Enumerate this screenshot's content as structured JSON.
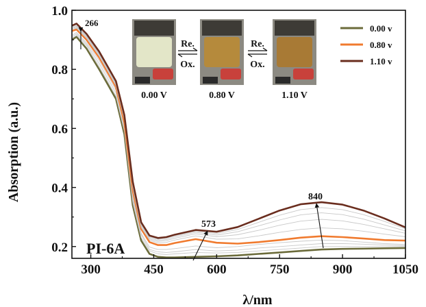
{
  "chart_data": {
    "type": "line",
    "ylabel": "Absorption (a.u.)",
    "xlabel": "λ/nm",
    "xlim": [
      255,
      1050
    ],
    "ylim": [
      0.16,
      1.0
    ],
    "x_ticks": [
      300,
      450,
      600,
      750,
      900,
      1050
    ],
    "y_ticks": [
      0.2,
      0.4,
      0.6,
      0.8,
      1.0
    ],
    "x_tick_labels": [
      "300",
      "450",
      "600",
      "750",
      "900",
      "1050"
    ],
    "y_tick_labels": [
      "0.2",
      "0.4",
      "0.6",
      "0.8",
      "1.0"
    ],
    "sample_label": "PI-6A",
    "legend_position": "top-right",
    "legend": [
      {
        "label": "0.00 v",
        "color": "#6b6b3a"
      },
      {
        "label": "0.80 v",
        "color": "#f07a2e"
      },
      {
        "label": "1.10 v",
        "color": "#6a2d1e"
      }
    ],
    "annotations": [
      {
        "text": "266",
        "x": 266,
        "y": 0.955
      },
      {
        "text": "573",
        "x": 573,
        "y": 0.255
      },
      {
        "text": "840",
        "x": 840,
        "y": 0.36
      }
    ],
    "inset": {
      "photos": [
        {
          "label": "0.00 V",
          "film_color": "#e3e6c8"
        },
        {
          "label": "0.80 V",
          "film_color": "#b58a3c"
        },
        {
          "label": "1.10 V",
          "film_color": "#a87a35"
        }
      ],
      "arrows": [
        {
          "top": "Re.",
          "bottom": "Ox."
        },
        {
          "top": "Re.",
          "bottom": "Ox."
        }
      ]
    },
    "series": [
      {
        "name": "0.00 v",
        "color": "#6b6b3a",
        "width": 2.6,
        "x": [
          255,
          266,
          290,
          320,
          340,
          360,
          380,
          400,
          420,
          440,
          460,
          480,
          500,
          550,
          600,
          650,
          700,
          750,
          800,
          850,
          900,
          950,
          1000,
          1050
        ],
        "y": [
          0.9,
          0.91,
          0.87,
          0.8,
          0.75,
          0.7,
          0.58,
          0.34,
          0.22,
          0.175,
          0.165,
          0.163,
          0.163,
          0.165,
          0.167,
          0.17,
          0.175,
          0.18,
          0.185,
          0.19,
          0.192,
          0.193,
          0.194,
          0.195
        ]
      },
      {
        "name": "",
        "color": "#c8c8c8",
        "width": 0.9,
        "x": [
          255,
          266,
          290,
          320,
          340,
          360,
          380,
          400,
          420,
          440,
          460,
          480,
          500,
          550,
          600,
          650,
          700,
          750,
          800,
          850,
          900,
          950,
          1000,
          1050
        ],
        "y": [
          0.905,
          0.915,
          0.88,
          0.81,
          0.76,
          0.71,
          0.59,
          0.35,
          0.23,
          0.185,
          0.175,
          0.173,
          0.175,
          0.18,
          0.178,
          0.18,
          0.185,
          0.19,
          0.195,
          0.2,
          0.2,
          0.2,
          0.2,
          0.2
        ]
      },
      {
        "name": "",
        "color": "#c8c8c8",
        "width": 0.9,
        "x": [
          255,
          266,
          290,
          320,
          340,
          360,
          380,
          400,
          420,
          440,
          460,
          480,
          500,
          550,
          600,
          650,
          700,
          750,
          800,
          850,
          900,
          950,
          1000,
          1050
        ],
        "y": [
          0.91,
          0.92,
          0.885,
          0.82,
          0.77,
          0.72,
          0.6,
          0.36,
          0.24,
          0.19,
          0.182,
          0.18,
          0.182,
          0.19,
          0.185,
          0.188,
          0.195,
          0.2,
          0.205,
          0.21,
          0.21,
          0.208,
          0.205,
          0.203
        ]
      },
      {
        "name": "",
        "color": "#c8c8c8",
        "width": 0.9,
        "x": [
          255,
          266,
          290,
          320,
          340,
          360,
          380,
          400,
          420,
          440,
          460,
          480,
          500,
          550,
          600,
          650,
          700,
          750,
          800,
          850,
          900,
          950,
          1000,
          1050
        ],
        "y": [
          0.915,
          0.925,
          0.89,
          0.83,
          0.78,
          0.73,
          0.61,
          0.37,
          0.245,
          0.198,
          0.19,
          0.19,
          0.193,
          0.202,
          0.196,
          0.2,
          0.207,
          0.213,
          0.218,
          0.222,
          0.22,
          0.215,
          0.21,
          0.207
        ]
      },
      {
        "name": "0.80 v",
        "color": "#f07a2e",
        "width": 2.6,
        "x": [
          255,
          266,
          290,
          320,
          340,
          360,
          380,
          400,
          420,
          440,
          460,
          480,
          500,
          550,
          600,
          650,
          700,
          750,
          800,
          850,
          900,
          950,
          1000,
          1050
        ],
        "y": [
          0.93,
          0.935,
          0.9,
          0.84,
          0.79,
          0.74,
          0.62,
          0.39,
          0.26,
          0.215,
          0.205,
          0.205,
          0.212,
          0.225,
          0.213,
          0.21,
          0.215,
          0.222,
          0.23,
          0.235,
          0.232,
          0.227,
          0.222,
          0.22
        ]
      },
      {
        "name": "",
        "color": "#c8c8c8",
        "width": 0.9,
        "x": [
          255,
          266,
          290,
          320,
          340,
          360,
          380,
          400,
          420,
          440,
          460,
          480,
          500,
          550,
          600,
          650,
          700,
          750,
          800,
          850,
          900,
          950,
          1000,
          1050
        ],
        "y": [
          0.935,
          0.94,
          0.905,
          0.845,
          0.795,
          0.745,
          0.63,
          0.4,
          0.265,
          0.222,
          0.212,
          0.214,
          0.222,
          0.236,
          0.225,
          0.226,
          0.236,
          0.248,
          0.258,
          0.263,
          0.26,
          0.252,
          0.242,
          0.233
        ]
      },
      {
        "name": "",
        "color": "#c8c8c8",
        "width": 0.9,
        "x": [
          255,
          266,
          290,
          320,
          340,
          360,
          380,
          400,
          420,
          440,
          460,
          480,
          500,
          550,
          600,
          650,
          700,
          750,
          800,
          850,
          900,
          950,
          1000,
          1050
        ],
        "y": [
          0.938,
          0.943,
          0.908,
          0.848,
          0.798,
          0.748,
          0.635,
          0.405,
          0.27,
          0.226,
          0.217,
          0.22,
          0.228,
          0.243,
          0.233,
          0.24,
          0.255,
          0.272,
          0.286,
          0.292,
          0.287,
          0.275,
          0.26,
          0.245
        ]
      },
      {
        "name": "",
        "color": "#c8c8c8",
        "width": 0.9,
        "x": [
          255,
          266,
          290,
          320,
          340,
          360,
          380,
          400,
          420,
          440,
          460,
          480,
          500,
          550,
          600,
          650,
          700,
          750,
          800,
          850,
          900,
          950,
          1000,
          1050
        ],
        "y": [
          0.941,
          0.946,
          0.911,
          0.851,
          0.801,
          0.751,
          0.638,
          0.41,
          0.274,
          0.23,
          0.221,
          0.224,
          0.233,
          0.248,
          0.239,
          0.25,
          0.27,
          0.29,
          0.307,
          0.314,
          0.308,
          0.293,
          0.273,
          0.253
        ]
      },
      {
        "name": "",
        "color": "#c8c8c8",
        "width": 0.9,
        "x": [
          255,
          266,
          290,
          320,
          340,
          360,
          380,
          400,
          420,
          440,
          460,
          480,
          500,
          550,
          600,
          650,
          700,
          750,
          800,
          850,
          900,
          950,
          1000,
          1050
        ],
        "y": [
          0.944,
          0.949,
          0.914,
          0.854,
          0.804,
          0.754,
          0.641,
          0.414,
          0.278,
          0.233,
          0.225,
          0.228,
          0.237,
          0.252,
          0.244,
          0.258,
          0.282,
          0.306,
          0.325,
          0.332,
          0.325,
          0.308,
          0.285,
          0.26
        ]
      },
      {
        "name": "1.10 v",
        "color": "#6a2d1e",
        "width": 2.6,
        "x": [
          255,
          266,
          290,
          320,
          340,
          360,
          380,
          400,
          420,
          440,
          460,
          480,
          500,
          550,
          600,
          650,
          700,
          750,
          800,
          850,
          900,
          950,
          1000,
          1050
        ],
        "y": [
          0.948,
          0.955,
          0.92,
          0.86,
          0.81,
          0.76,
          0.645,
          0.42,
          0.282,
          0.237,
          0.229,
          0.232,
          0.24,
          0.256,
          0.25,
          0.266,
          0.294,
          0.322,
          0.343,
          0.35,
          0.342,
          0.322,
          0.295,
          0.265
        ]
      }
    ]
  }
}
